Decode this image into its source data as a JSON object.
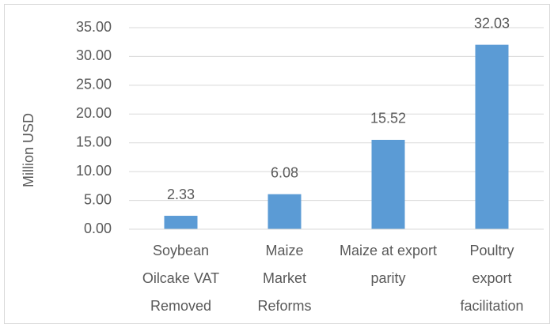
{
  "chart_data": {
    "type": "bar",
    "y_label": "Million USD",
    "categories": [
      "Soybean Oilcake VAT Removed",
      "Maize Market Reforms",
      "Maize at export parity",
      "Poultry export facilitation"
    ],
    "values": [
      2.33,
      6.08,
      15.52,
      32.03
    ],
    "color": "#5b9bd5",
    "ylim": [
      0,
      35
    ],
    "yticks": [
      {
        "value": 0,
        "label": "0.00"
      },
      {
        "value": 5,
        "label": "5.00"
      },
      {
        "value": 10,
        "label": "10.00"
      },
      {
        "value": 15,
        "label": "15.00"
      },
      {
        "value": 20,
        "label": "20.00"
      },
      {
        "value": 25,
        "label": "25.00"
      },
      {
        "value": 30,
        "label": "30.00"
      },
      {
        "value": 35,
        "label": "35.00"
      }
    ],
    "grid": true
  }
}
